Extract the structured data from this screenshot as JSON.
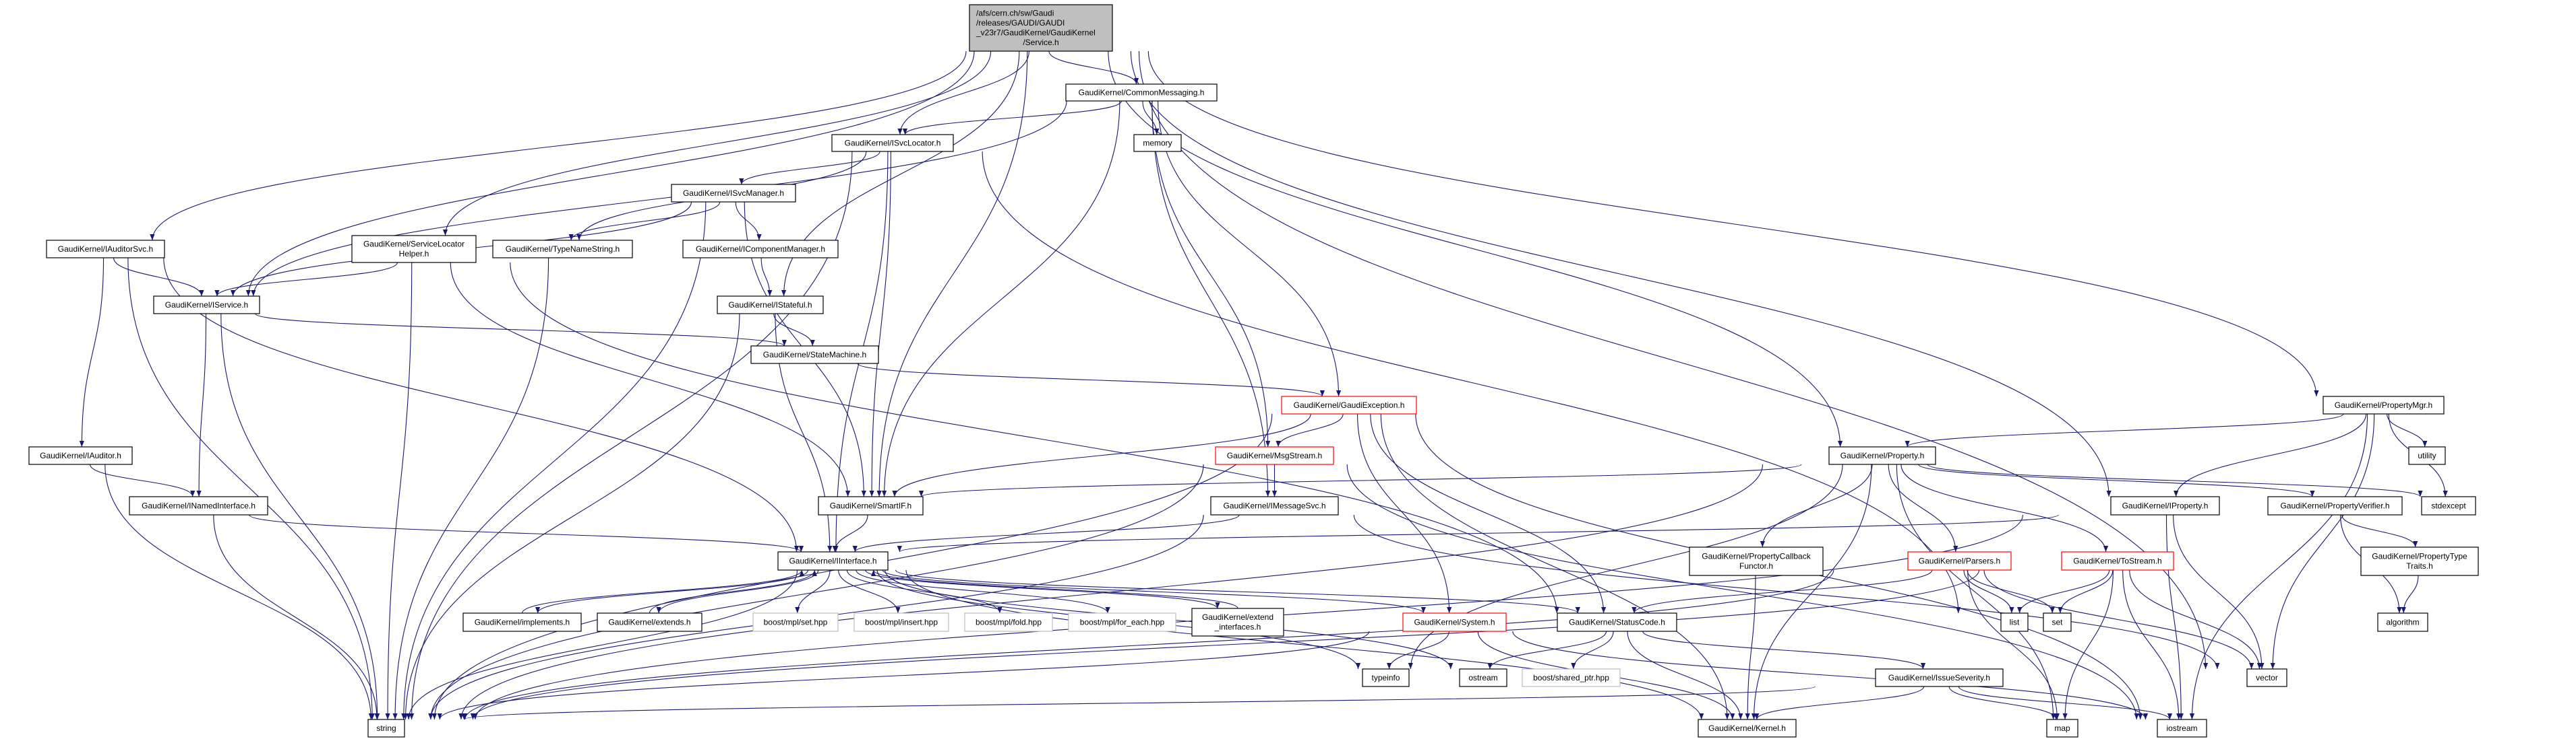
{
  "graph": {
    "type": "include-dependency-graph",
    "colors": {
      "edge": "#191970",
      "root_fill": "#bfbfbf",
      "red_border": "#ff0000",
      "external_border": "#bfbfbf",
      "normal_border": "#000000"
    },
    "nodes": [
      {
        "id": "service",
        "lines": [
          "/afs/cern.ch/sw/Gaudi",
          "/releases/GAUDI/GAUDI",
          "_v23r7/GaudiKernel/GaudiKernel",
          "/Service.h"
        ],
        "kind": "root",
        "align": "left"
      },
      {
        "id": "commonmessaging",
        "lines": [
          "GaudiKernel/CommonMessaging.h"
        ],
        "kind": "normal"
      },
      {
        "id": "isvclocator",
        "lines": [
          "GaudiKernel/ISvcLocator.h"
        ],
        "kind": "normal"
      },
      {
        "id": "memory",
        "lines": [
          "memory"
        ],
        "kind": "normal"
      },
      {
        "id": "isvcmanager",
        "lines": [
          "GaudiKernel/ISvcManager.h"
        ],
        "kind": "normal"
      },
      {
        "id": "iauditorsvc",
        "lines": [
          "GaudiKernel/IAuditorSvc.h"
        ],
        "kind": "normal"
      },
      {
        "id": "servicelocatorhelper",
        "lines": [
          "GaudiKernel/ServiceLocator",
          "Helper.h"
        ],
        "kind": "normal"
      },
      {
        "id": "typenamestring",
        "lines": [
          "GaudiKernel/TypeNameString.h"
        ],
        "kind": "normal"
      },
      {
        "id": "icomponentmanager",
        "lines": [
          "GaudiKernel/IComponentManager.h"
        ],
        "kind": "normal"
      },
      {
        "id": "iservice",
        "lines": [
          "GaudiKernel/IService.h"
        ],
        "kind": "normal"
      },
      {
        "id": "istateful",
        "lines": [
          "GaudiKernel/IStateful.h"
        ],
        "kind": "normal"
      },
      {
        "id": "statemachine",
        "lines": [
          "GaudiKernel/StateMachine.h"
        ],
        "kind": "normal"
      },
      {
        "id": "gaudiexception",
        "lines": [
          "GaudiKernel/GaudiException.h"
        ],
        "kind": "red"
      },
      {
        "id": "propertymgr",
        "lines": [
          "GaudiKernel/PropertyMgr.h"
        ],
        "kind": "normal"
      },
      {
        "id": "iauditor",
        "lines": [
          "GaudiKernel/IAuditor.h"
        ],
        "kind": "normal"
      },
      {
        "id": "msgstream",
        "lines": [
          "GaudiKernel/MsgStream.h"
        ],
        "kind": "red"
      },
      {
        "id": "property",
        "lines": [
          "GaudiKernel/Property.h"
        ],
        "kind": "normal"
      },
      {
        "id": "utility",
        "lines": [
          "utility"
        ],
        "kind": "normal"
      },
      {
        "id": "inamedinterface",
        "lines": [
          "GaudiKernel/INamedInterface.h"
        ],
        "kind": "normal"
      },
      {
        "id": "smartif",
        "lines": [
          "GaudiKernel/SmartIF.h"
        ],
        "kind": "normal"
      },
      {
        "id": "imessagesvc",
        "lines": [
          "GaudiKernel/IMessageSvc.h"
        ],
        "kind": "normal"
      },
      {
        "id": "iproperty",
        "lines": [
          "GaudiKernel/IProperty.h"
        ],
        "kind": "normal"
      },
      {
        "id": "propertyverifier",
        "lines": [
          "GaudiKernel/PropertyVerifier.h"
        ],
        "kind": "normal"
      },
      {
        "id": "stdexcept",
        "lines": [
          "stdexcept"
        ],
        "kind": "normal"
      },
      {
        "id": "iinterface",
        "lines": [
          "GaudiKernel/IInterface.h"
        ],
        "kind": "normal"
      },
      {
        "id": "propertycallbackfunctor",
        "lines": [
          "GaudiKernel/PropertyCallback",
          "Functor.h"
        ],
        "kind": "normal"
      },
      {
        "id": "parsers",
        "lines": [
          "GaudiKernel/Parsers.h"
        ],
        "kind": "red"
      },
      {
        "id": "tostream",
        "lines": [
          "GaudiKernel/ToStream.h"
        ],
        "kind": "red"
      },
      {
        "id": "propertytypetraits",
        "lines": [
          "GaudiKernel/PropertyType",
          "Traits.h"
        ],
        "kind": "normal"
      },
      {
        "id": "implements",
        "lines": [
          "GaudiKernel/implements.h"
        ],
        "kind": "normal"
      },
      {
        "id": "extends",
        "lines": [
          "GaudiKernel/extends.h"
        ],
        "kind": "normal"
      },
      {
        "id": "mplset",
        "lines": [
          "boost/mpl/set.hpp"
        ],
        "kind": "ext"
      },
      {
        "id": "mplinsert",
        "lines": [
          "boost/mpl/insert.hpp"
        ],
        "kind": "ext"
      },
      {
        "id": "mplfold",
        "lines": [
          "boost/mpl/fold.hpp"
        ],
        "kind": "ext"
      },
      {
        "id": "mplforeach",
        "lines": [
          "boost/mpl/for_each.hpp"
        ],
        "kind": "ext"
      },
      {
        "id": "extendinterfaces",
        "lines": [
          "GaudiKernel/extend",
          "_interfaces.h"
        ],
        "kind": "normal"
      },
      {
        "id": "system",
        "lines": [
          "GaudiKernel/System.h"
        ],
        "kind": "red"
      },
      {
        "id": "statuscode",
        "lines": [
          "GaudiKernel/StatusCode.h"
        ],
        "kind": "normal"
      },
      {
        "id": "list",
        "lines": [
          "list"
        ],
        "kind": "normal"
      },
      {
        "id": "set",
        "lines": [
          "set"
        ],
        "kind": "normal"
      },
      {
        "id": "algorithm",
        "lines": [
          "algorithm"
        ],
        "kind": "normal"
      },
      {
        "id": "typeinfo",
        "lines": [
          "typeinfo"
        ],
        "kind": "normal"
      },
      {
        "id": "ostream",
        "lines": [
          "ostream"
        ],
        "kind": "normal"
      },
      {
        "id": "sharedptr",
        "lines": [
          "boost/shared_ptr.hpp"
        ],
        "kind": "ext"
      },
      {
        "id": "issueseverity",
        "lines": [
          "GaudiKernel/IssueSeverity.h"
        ],
        "kind": "normal"
      },
      {
        "id": "vector",
        "lines": [
          "vector"
        ],
        "kind": "normal"
      },
      {
        "id": "string",
        "lines": [
          "string"
        ],
        "kind": "normal"
      },
      {
        "id": "kernel",
        "lines": [
          "GaudiKernel/Kernel.h"
        ],
        "kind": "normal"
      },
      {
        "id": "map",
        "lines": [
          "map"
        ],
        "kind": "normal"
      },
      {
        "id": "iostream",
        "lines": [
          "iostream"
        ],
        "kind": "normal"
      }
    ],
    "edges": [
      [
        "service",
        "commonmessaging"
      ],
      [
        "service",
        "isvclocator"
      ],
      [
        "service",
        "iauditorsvc"
      ],
      [
        "service",
        "iservice"
      ],
      [
        "service",
        "servicelocatorhelper"
      ],
      [
        "service",
        "istateful"
      ],
      [
        "service",
        "smartif"
      ],
      [
        "service",
        "property"
      ],
      [
        "service",
        "iproperty"
      ],
      [
        "service",
        "propertymgr"
      ],
      [
        "service",
        "vector"
      ],
      [
        "commonmessaging",
        "isvclocator"
      ],
      [
        "commonmessaging",
        "iservice"
      ],
      [
        "commonmessaging",
        "memory"
      ],
      [
        "commonmessaging",
        "smartif"
      ],
      [
        "commonmessaging",
        "msgstream"
      ],
      [
        "commonmessaging",
        "imessagesvc"
      ],
      [
        "commonmessaging",
        "gaudiexception"
      ],
      [
        "isvclocator",
        "isvcmanager"
      ],
      [
        "isvclocator",
        "typenamestring"
      ],
      [
        "isvclocator",
        "string"
      ],
      [
        "isvclocator",
        "smartif"
      ],
      [
        "isvclocator",
        "iinterface"
      ],
      [
        "isvclocator",
        "list"
      ],
      [
        "isvcmanager",
        "iservice"
      ],
      [
        "isvcmanager",
        "typenamestring"
      ],
      [
        "isvcmanager",
        "icomponentmanager"
      ],
      [
        "isvcmanager",
        "smartif"
      ],
      [
        "isvcmanager",
        "string"
      ],
      [
        "icomponentmanager",
        "istateful"
      ],
      [
        "istateful",
        "statemachine"
      ],
      [
        "istateful",
        "iinterface"
      ],
      [
        "istateful",
        "string"
      ],
      [
        "statemachine",
        "gaudiexception"
      ],
      [
        "iauditorsvc",
        "iservice"
      ],
      [
        "iauditorsvc",
        "iauditor"
      ],
      [
        "iauditorsvc",
        "string"
      ],
      [
        "iauditorsvc",
        "iinterface"
      ],
      [
        "iservice",
        "inamedinterface"
      ],
      [
        "iservice",
        "string"
      ],
      [
        "iservice",
        "statemachine"
      ],
      [
        "iauditor",
        "inamedinterface"
      ],
      [
        "iauditor",
        "string"
      ],
      [
        "inamedinterface",
        "iinterface"
      ],
      [
        "inamedinterface",
        "string"
      ],
      [
        "servicelocatorhelper",
        "iservice"
      ],
      [
        "servicelocatorhelper",
        "string"
      ],
      [
        "servicelocatorhelper",
        "smartif"
      ],
      [
        "servicelocatorhelper",
        "statuscode"
      ],
      [
        "typenamestring",
        "string"
      ],
      [
        "gaudiexception",
        "smartif"
      ],
      [
        "gaudiexception",
        "msgstream"
      ],
      [
        "gaudiexception",
        "system"
      ],
      [
        "gaudiexception",
        "statuscode"
      ],
      [
        "gaudiexception",
        "kernel"
      ],
      [
        "gaudiexception",
        "string"
      ],
      [
        "gaudiexception",
        "iostream"
      ],
      [
        "msgstream",
        "imessagesvc"
      ],
      [
        "msgstream",
        "string"
      ],
      [
        "msgstream",
        "iostream"
      ],
      [
        "imessagesvc",
        "iinterface"
      ],
      [
        "imessagesvc",
        "string"
      ],
      [
        "imessagesvc",
        "vector"
      ],
      [
        "smartif",
        "iinterface"
      ],
      [
        "iinterface",
        "implements"
      ],
      [
        "iinterface",
        "extends"
      ],
      [
        "iinterface",
        "mplset"
      ],
      [
        "iinterface",
        "mplinsert"
      ],
      [
        "iinterface",
        "mplfold"
      ],
      [
        "iinterface",
        "mplforeach"
      ],
      [
        "iinterface",
        "extendinterfaces"
      ],
      [
        "iinterface",
        "system"
      ],
      [
        "iinterface",
        "statuscode"
      ],
      [
        "iinterface",
        "typeinfo"
      ],
      [
        "iinterface",
        "ostream"
      ],
      [
        "iinterface",
        "kernel"
      ],
      [
        "iinterface",
        "string"
      ],
      [
        "implements",
        "iinterface"
      ],
      [
        "extends",
        "iinterface"
      ],
      [
        "extendinterfaces",
        "iinterface"
      ],
      [
        "system",
        "typeinfo"
      ],
      [
        "system",
        "string"
      ],
      [
        "system",
        "kernel"
      ],
      [
        "system",
        "iostream"
      ],
      [
        "statuscode",
        "ostream"
      ],
      [
        "statuscode",
        "sharedptr"
      ],
      [
        "statuscode",
        "kernel"
      ],
      [
        "statuscode",
        "issueseverity"
      ],
      [
        "issueseverity",
        "kernel"
      ],
      [
        "issueseverity",
        "map"
      ],
      [
        "issueseverity",
        "string"
      ],
      [
        "issueseverity",
        "iostream"
      ],
      [
        "property",
        "smartif"
      ],
      [
        "property",
        "propertycallbackfunctor"
      ],
      [
        "property",
        "parsers"
      ],
      [
        "property",
        "tostream"
      ],
      [
        "property",
        "propertyverifier"
      ],
      [
        "property",
        "stdexcept"
      ],
      [
        "property",
        "typeinfo"
      ],
      [
        "property",
        "string"
      ],
      [
        "property",
        "kernel"
      ],
      [
        "property",
        "map"
      ],
      [
        "propertycallbackfunctor",
        "kernel"
      ],
      [
        "parsers",
        "statuscode"
      ],
      [
        "parsers",
        "list"
      ],
      [
        "parsers",
        "set"
      ],
      [
        "parsers",
        "map"
      ],
      [
        "parsers",
        "vector"
      ],
      [
        "parsers",
        "string"
      ],
      [
        "tostream",
        "list"
      ],
      [
        "tostream",
        "set"
      ],
      [
        "tostream",
        "map"
      ],
      [
        "tostream",
        "vector"
      ],
      [
        "tostream",
        "iostream"
      ],
      [
        "tostream",
        "string"
      ],
      [
        "iproperty",
        "iinterface"
      ],
      [
        "iproperty",
        "string"
      ],
      [
        "iproperty",
        "vector"
      ],
      [
        "iproperty",
        "iostream"
      ],
      [
        "propertymgr",
        "property"
      ],
      [
        "propertymgr",
        "iproperty"
      ],
      [
        "propertymgr",
        "utility"
      ],
      [
        "propertymgr",
        "stdexcept"
      ],
      [
        "propertymgr",
        "vector"
      ],
      [
        "propertymgr",
        "iostream"
      ],
      [
        "propertyverifier",
        "propertytypetraits"
      ],
      [
        "propertyverifier",
        "algorithm"
      ],
      [
        "propertytypetraits",
        "algorithm"
      ]
    ]
  }
}
